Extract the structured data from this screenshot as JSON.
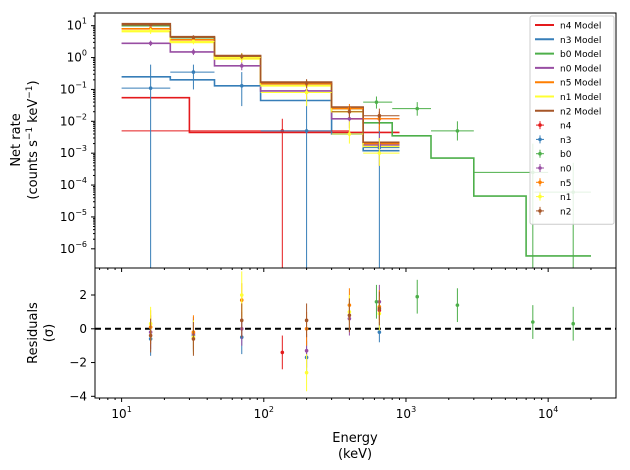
{
  "figure": {
    "xlabel": "Energy",
    "xlabel_unit": "(keV)",
    "top_ylabel": "Net rate",
    "top_ylabel_unit_prefix": "(counts s",
    "top_ylabel_unit_exp1": "−1",
    "top_ylabel_unit_mid": " keV",
    "top_ylabel_unit_exp2": "−1",
    "top_ylabel_unit_suffix": ")",
    "bottom_ylabel": "Residuals",
    "bottom_ylabel_unit": "(σ)"
  },
  "chart_data": [
    {
      "type": "line",
      "panel": "top",
      "title": "",
      "xlabel": "",
      "ylabel": "Net rate (counts s−1 keV−1)",
      "x_scale": "log",
      "y_scale": "log",
      "xlim": [
        6.5,
        30000
      ],
      "ylim": [
        2.5e-07,
        25
      ],
      "y_ticks": [
        1e-06,
        1e-05,
        0.0001,
        0.001,
        0.01,
        0.1,
        1,
        10
      ],
      "y_tick_labels": [
        {
          "base": "10",
          "exp": "−6"
        },
        {
          "base": "10",
          "exp": "−5"
        },
        {
          "base": "10",
          "exp": "−4"
        },
        {
          "base": "10",
          "exp": "−3"
        },
        {
          "base": "10",
          "exp": "−2"
        },
        {
          "base": "10",
          "exp": "−1"
        },
        {
          "base": "10",
          "exp": "0"
        },
        {
          "base": "10",
          "exp": "1"
        }
      ],
      "legend_position": "top-right",
      "grid": false,
      "models": [
        {
          "name": "n4 Model",
          "color": "#e41a1c",
          "edges": [
            10,
            30,
            400,
            900
          ],
          "values": [
            0.055,
            0.0045,
            0.0045
          ]
        },
        {
          "name": "n3 Model",
          "color": "#377eb8",
          "edges": [
            10,
            22,
            45,
            95,
            300,
            500,
            900
          ],
          "values": [
            0.25,
            0.2,
            0.13,
            0.045,
            0.004,
            0.0012
          ]
        },
        {
          "name": "b0 Model",
          "color": "#4daf4a",
          "edges": [
            10,
            22,
            45,
            95,
            300,
            500,
            800,
            1500,
            3000,
            7000,
            20000
          ],
          "values": [
            10,
            4.2,
            1.1,
            0.15,
            0.025,
            0.009,
            0.0035,
            0.0007,
            4.5e-05,
            6e-07
          ]
        },
        {
          "name": "n0 Model",
          "color": "#984ea3",
          "edges": [
            10,
            22,
            45,
            95,
            300,
            500,
            900
          ],
          "values": [
            2.8,
            1.5,
            0.55,
            0.09,
            0.012,
            0.0018
          ]
        },
        {
          "name": "n5 Model",
          "color": "#ff7f00",
          "edges": [
            10,
            22,
            45,
            95,
            300,
            500,
            900
          ],
          "values": [
            8.0,
            3.6,
            1.0,
            0.15,
            0.025,
            0.002
          ]
        },
        {
          "name": "n1 Model",
          "color": "#ffff33",
          "edges": [
            10,
            22,
            45,
            95,
            300,
            500,
            900
          ],
          "values": [
            6.5,
            3.0,
            0.9,
            0.13,
            0.02,
            0.0016
          ]
        },
        {
          "name": "n2 Model",
          "color": "#a65628",
          "edges": [
            10,
            22,
            45,
            95,
            300,
            500,
            900
          ],
          "values": [
            11.5,
            4.5,
            1.15,
            0.17,
            0.028,
            0.0022
          ]
        }
      ],
      "series": [
        {
          "name": "n4",
          "color": "#e41a1c",
          "x": [
            135,
            650
          ],
          "y": [
            0.005,
            0.012
          ],
          "x_lo": [
            10,
            400
          ],
          "x_hi": [
            400,
            900
          ],
          "y_lo": [
            2.5e-07,
            0.004
          ],
          "y_hi": [
            0.012,
            0.02
          ]
        },
        {
          "name": "n3",
          "color": "#377eb8",
          "x": [
            16,
            32,
            70,
            200,
            650
          ],
          "y": [
            0.11,
            0.35,
            0.13,
            0.005,
            0.0015
          ],
          "x_lo": [
            10,
            22,
            45,
            95,
            500
          ],
          "x_hi": [
            22,
            45,
            95,
            300,
            900
          ],
          "y_lo": [
            2.5e-07,
            0.1,
            0.03,
            2.5e-07,
            2.5e-07
          ],
          "y_hi": [
            0.6,
            0.6,
            0.35,
            0.06,
            0.007
          ]
        },
        {
          "name": "b0",
          "color": "#4daf4a",
          "x": [
            620,
            1200,
            2300,
            7800,
            15000
          ],
          "y": [
            0.04,
            0.025,
            0.005,
            0.00025,
            6e-05
          ],
          "x_lo": [
            500,
            800,
            1500,
            3000,
            8000
          ],
          "x_hi": [
            800,
            1500,
            3000,
            10000,
            20000
          ],
          "y_lo": [
            0.025,
            0.015,
            0.0025,
            2.5e-07,
            2.5e-07
          ],
          "y_hi": [
            0.06,
            0.04,
            0.01,
            0.002,
            0.0005
          ]
        },
        {
          "name": "n0",
          "color": "#984ea3",
          "x": [
            16,
            32,
            70,
            200,
            400,
            650
          ],
          "y": [
            2.8,
            1.5,
            0.55,
            0.09,
            0.012,
            0.0018
          ],
          "x_lo": [
            10,
            22,
            45,
            95,
            300,
            500
          ],
          "x_hi": [
            22,
            45,
            95,
            300,
            500,
            900
          ],
          "y_lo": [
            2.3,
            1.2,
            0.4,
            0.05,
            0.006,
            0.0004
          ],
          "y_hi": [
            3.4,
            1.9,
            0.7,
            0.14,
            0.02,
            0.004
          ]
        },
        {
          "name": "n5",
          "color": "#ff7f00",
          "x": [
            16,
            32,
            70,
            200,
            400,
            650
          ],
          "y": [
            8.0,
            3.6,
            1.0,
            0.15,
            0.025,
            0.012
          ],
          "x_lo": [
            10,
            22,
            45,
            95,
            300,
            500
          ],
          "x_hi": [
            22,
            45,
            95,
            300,
            500,
            900
          ],
          "y_lo": [
            7.0,
            3.0,
            0.8,
            0.1,
            0.015,
            0.005
          ],
          "y_hi": [
            9.0,
            4.2,
            1.2,
            0.2,
            0.035,
            0.02
          ]
        },
        {
          "name": "n1",
          "color": "#ffff33",
          "x": [
            16,
            32,
            70,
            200,
            400,
            650
          ],
          "y": [
            7.0,
            3.2,
            1.0,
            0.08,
            0.004,
            0.001
          ],
          "x_lo": [
            10,
            22,
            45,
            95,
            300,
            500
          ],
          "x_hi": [
            22,
            45,
            95,
            300,
            500,
            900
          ],
          "y_lo": [
            5.5,
            2.6,
            0.7,
            0.03,
            0.002,
            0.0004
          ],
          "y_hi": [
            8.5,
            3.8,
            1.4,
            0.14,
            0.01,
            0.003
          ]
        },
        {
          "name": "n2",
          "color": "#a65628",
          "x": [
            16,
            32,
            70,
            200,
            400,
            650
          ],
          "y": [
            10.5,
            4.3,
            1.1,
            0.16,
            0.02,
            0.015
          ],
          "x_lo": [
            10,
            22,
            45,
            95,
            300,
            500
          ],
          "x_hi": [
            22,
            45,
            95,
            300,
            500,
            900
          ],
          "y_lo": [
            9.5,
            3.7,
            0.9,
            0.11,
            0.013,
            0.008
          ],
          "y_hi": [
            12.0,
            5.0,
            1.35,
            0.21,
            0.03,
            0.025
          ]
        }
      ]
    },
    {
      "type": "scatter",
      "panel": "bottom",
      "title": "",
      "xlabel": "Energy (keV)",
      "ylabel": "Residuals (σ)",
      "x_scale": "log",
      "y_scale": "linear",
      "xlim": [
        6.5,
        30000
      ],
      "ylim": [
        -4.1,
        3.6
      ],
      "y_ticks": [
        -4,
        -2,
        0,
        2
      ],
      "y_tick_labels": [
        "−4",
        "−2",
        "0",
        "2"
      ],
      "x_ticks": [
        10,
        100,
        1000,
        10000
      ],
      "x_tick_labels": [
        {
          "base": "10",
          "exp": "1"
        },
        {
          "base": "10",
          "exp": "2"
        },
        {
          "base": "10",
          "exp": "3"
        },
        {
          "base": "10",
          "exp": "4"
        }
      ],
      "zero_line": {
        "y": 0,
        "style": "dashed",
        "color": "#000000"
      },
      "series": [
        {
          "name": "n4",
          "color": "#e41a1c",
          "x": [
            135,
            650
          ],
          "y": [
            -1.4,
            1.1
          ],
          "yerr": [
            1.0,
            0.6
          ]
        },
        {
          "name": "n3",
          "color": "#377eb8",
          "x": [
            16,
            32,
            70,
            200,
            650
          ],
          "y": [
            -0.6,
            -0.4,
            -0.5,
            -1.7,
            -0.2
          ],
          "yerr": [
            1.0,
            1.0,
            1.0,
            1.0,
            0.6
          ]
        },
        {
          "name": "b0",
          "color": "#4daf4a",
          "x": [
            620,
            1200,
            2300,
            7800,
            15000
          ],
          "y": [
            1.6,
            1.9,
            1.4,
            0.4,
            0.3
          ],
          "yerr": [
            1.0,
            1.0,
            1.0,
            1.0,
            1.0
          ]
        },
        {
          "name": "n0",
          "color": "#984ea3",
          "x": [
            16,
            32,
            70,
            200,
            400,
            650
          ],
          "y": [
            -0.2,
            -0.3,
            0.0,
            -1.3,
            0.6,
            1.6
          ],
          "yerr": [
            1.0,
            1.0,
            1.0,
            1.0,
            1.0,
            1.0
          ]
        },
        {
          "name": "n5",
          "color": "#ff7f00",
          "x": [
            16,
            32,
            70,
            200,
            400,
            650
          ],
          "y": [
            0.1,
            -0.2,
            1.7,
            0.0,
            1.4,
            1.3
          ],
          "yerr": [
            1.0,
            1.0,
            1.0,
            1.0,
            1.0,
            1.0
          ]
        },
        {
          "name": "n1",
          "color": "#ffff33",
          "x": [
            16,
            32,
            70,
            200,
            400,
            650
          ],
          "y": [
            0.3,
            -0.5,
            2.0,
            -2.6,
            1.0,
            0.9
          ],
          "yerr": [
            1.0,
            1.0,
            1.4,
            1.1,
            1.0,
            1.0
          ]
        },
        {
          "name": "n2",
          "color": "#a65628",
          "x": [
            16,
            32,
            70,
            200,
            400,
            650
          ],
          "y": [
            -0.4,
            -0.6,
            0.5,
            0.5,
            0.8,
            1.2
          ],
          "yerr": [
            1.0,
            1.0,
            1.0,
            1.0,
            1.0,
            1.0
          ]
        }
      ]
    }
  ]
}
